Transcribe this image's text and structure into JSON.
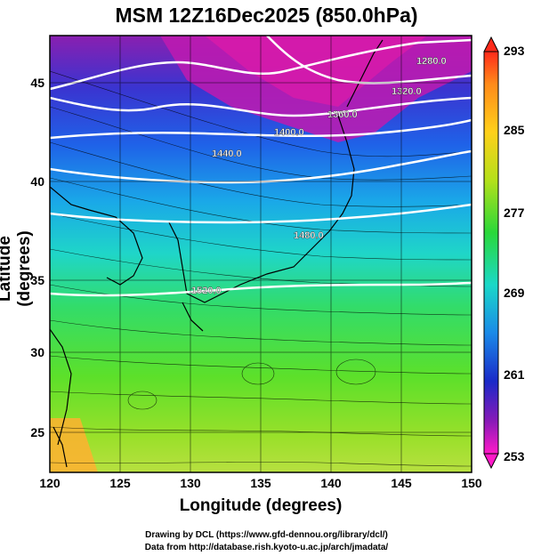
{
  "title": "MSM 12Z16Dec2025 (850.0hPa)",
  "axes": {
    "xlabel": "Longitude (degrees)",
    "ylabel": "Latitude  (degrees)",
    "xticks": [
      "120",
      "125",
      "130",
      "135",
      "140",
      "145",
      "150"
    ],
    "yticks": [
      "25",
      "30",
      "35",
      "40",
      "45"
    ]
  },
  "colorbar": {
    "ticks": [
      "293",
      "285",
      "277",
      "269",
      "261",
      "253"
    ],
    "range": [
      253,
      293
    ]
  },
  "contours": {
    "labels": [
      "1280.0",
      "1320.0",
      "1360.0",
      "1400.0",
      "1440.0",
      "1480.0",
      "1520.0"
    ]
  },
  "credits": {
    "line1": "Drawing by DCL (https://www.gfd-dennou.org/library/dcl/)",
    "line2": "Data from http://database.rish.kyoto-u.ac.jp/arch/jmadata/"
  },
  "colors": {
    "cold": "#7a1fa8",
    "cool": "#1a40c8",
    "mid": "#1fd8c0",
    "warm": "#5ce02a",
    "hot": "#ff7a2a"
  }
}
